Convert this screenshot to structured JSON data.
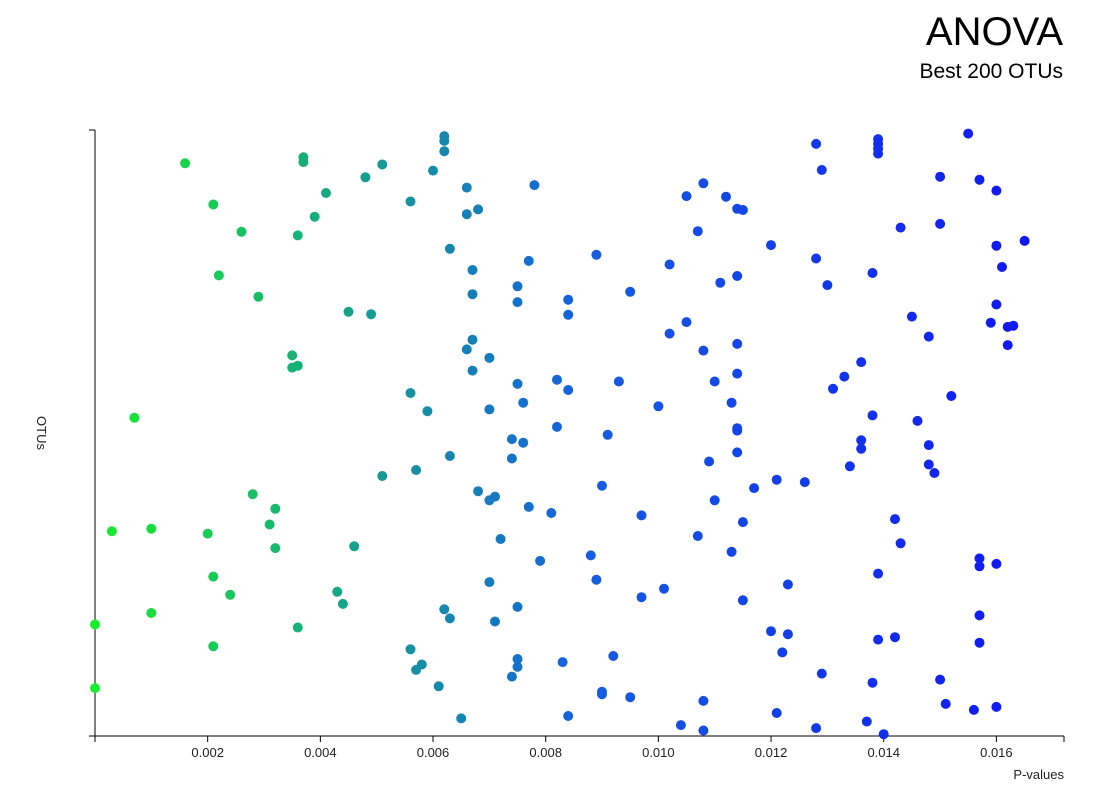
{
  "chart_data": {
    "type": "scatter",
    "title": "ANOVA",
    "subtitle": "Best 200 OTUs",
    "xlabel": "P-values",
    "ylabel": "OTUs",
    "xlim": [
      0,
      0.0172
    ],
    "ylim": [
      0,
      1
    ],
    "x_ticks": [
      "0.002",
      "0.004",
      "0.006",
      "0.008",
      "0.010",
      "0.012",
      "0.014",
      "0.016"
    ],
    "x_tick_values": [
      0.002,
      0.004,
      0.006,
      0.008,
      0.01,
      0.012,
      0.014,
      0.016
    ],
    "color_scale": [
      "#18ee2a",
      "#1560e0",
      "#1010f5"
    ],
    "points": [
      [
        0.0016,
        0.945
      ],
      [
        0.0037,
        0.955
      ],
      [
        0.0037,
        0.947
      ],
      [
        0.0051,
        0.943
      ],
      [
        0.0062,
        0.99
      ],
      [
        0.0062,
        0.982
      ],
      [
        0.0062,
        0.965
      ],
      [
        0.0048,
        0.922
      ],
      [
        0.006,
        0.933
      ],
      [
        0.0021,
        0.877
      ],
      [
        0.0041,
        0.896
      ],
      [
        0.0039,
        0.857
      ],
      [
        0.0026,
        0.832
      ],
      [
        0.0036,
        0.826
      ],
      [
        0.0056,
        0.882
      ],
      [
        0.0066,
        0.905
      ],
      [
        0.0068,
        0.869
      ],
      [
        0.0066,
        0.861
      ],
      [
        0.0078,
        0.909
      ],
      [
        0.0063,
        0.804
      ],
      [
        0.0067,
        0.769
      ],
      [
        0.0022,
        0.76
      ],
      [
        0.0029,
        0.725
      ],
      [
        0.0067,
        0.729
      ],
      [
        0.0075,
        0.742
      ],
      [
        0.0077,
        0.784
      ],
      [
        0.0075,
        0.716
      ],
      [
        0.0045,
        0.7
      ],
      [
        0.0049,
        0.696
      ],
      [
        0.0089,
        0.794
      ],
      [
        0.0084,
        0.72
      ],
      [
        0.0084,
        0.695
      ],
      [
        0.0067,
        0.654
      ],
      [
        0.0066,
        0.638
      ],
      [
        0.0035,
        0.628
      ],
      [
        0.0035,
        0.608
      ],
      [
        0.0036,
        0.611
      ],
      [
        0.007,
        0.624
      ],
      [
        0.0067,
        0.603
      ],
      [
        0.0075,
        0.581
      ],
      [
        0.0082,
        0.588
      ],
      [
        0.0084,
        0.571
      ],
      [
        0.0056,
        0.566
      ],
      [
        0.0059,
        0.536
      ],
      [
        0.0076,
        0.55
      ],
      [
        0.007,
        0.539
      ],
      [
        0.0007,
        0.525
      ],
      [
        0.0082,
        0.51
      ],
      [
        0.0074,
        0.49
      ],
      [
        0.0076,
        0.484
      ],
      [
        0.0091,
        0.497
      ],
      [
        0.0093,
        0.585
      ],
      [
        0.0095,
        0.733
      ],
      [
        0.0074,
        0.458
      ],
      [
        0.0063,
        0.462
      ],
      [
        0.0057,
        0.439
      ],
      [
        0.0051,
        0.429
      ],
      [
        0.0068,
        0.404
      ],
      [
        0.007,
        0.389
      ],
      [
        0.0071,
        0.395
      ],
      [
        0.0077,
        0.378
      ],
      [
        0.0081,
        0.368
      ],
      [
        0.009,
        0.413
      ],
      [
        0.0097,
        0.364
      ],
      [
        0.0028,
        0.399
      ],
      [
        0.0032,
        0.375
      ],
      [
        0.0031,
        0.349
      ],
      [
        0.0003,
        0.338
      ],
      [
        0.001,
        0.342
      ],
      [
        0.002,
        0.334
      ],
      [
        0.0032,
        0.31
      ],
      [
        0.0046,
        0.313
      ],
      [
        0.0072,
        0.325
      ],
      [
        0.0079,
        0.289
      ],
      [
        0.0088,
        0.298
      ],
      [
        0.0089,
        0.258
      ],
      [
        0.007,
        0.254
      ],
      [
        0.0075,
        0.213
      ],
      [
        0.0021,
        0.263
      ],
      [
        0.0024,
        0.233
      ],
      [
        0.0043,
        0.238
      ],
      [
        0.0044,
        0.218
      ],
      [
        0.001,
        0.203
      ],
      [
        0.0,
        0.184
      ],
      [
        0.0036,
        0.179
      ],
      [
        0.0062,
        0.209
      ],
      [
        0.0063,
        0.194
      ],
      [
        0.0071,
        0.189
      ],
      [
        0.0097,
        0.229
      ],
      [
        0.0101,
        0.243
      ],
      [
        0.0021,
        0.148
      ],
      [
        0.0056,
        0.143
      ],
      [
        0.0058,
        0.118
      ],
      [
        0.0057,
        0.109
      ],
      [
        0.0075,
        0.127
      ],
      [
        0.0075,
        0.114
      ],
      [
        0.0074,
        0.098
      ],
      [
        0.0083,
        0.122
      ],
      [
        0.0092,
        0.132
      ],
      [
        0.0061,
        0.082
      ],
      [
        0.0,
        0.079
      ],
      [
        0.009,
        0.073
      ],
      [
        0.009,
        0.069
      ],
      [
        0.0095,
        0.064
      ],
      [
        0.0065,
        0.029
      ],
      [
        0.0084,
        0.033
      ],
      [
        0.0104,
        0.018
      ],
      [
        0.0108,
        0.058
      ],
      [
        0.0108,
        0.009
      ],
      [
        0.0105,
        0.891
      ],
      [
        0.0108,
        0.912
      ],
      [
        0.0112,
        0.89
      ],
      [
        0.0114,
        0.87
      ],
      [
        0.0115,
        0.868
      ],
      [
        0.0107,
        0.833
      ],
      [
        0.0102,
        0.778
      ],
      [
        0.0111,
        0.748
      ],
      [
        0.0114,
        0.759
      ],
      [
        0.012,
        0.81
      ],
      [
        0.0102,
        0.664
      ],
      [
        0.0105,
        0.683
      ],
      [
        0.0108,
        0.636
      ],
      [
        0.0114,
        0.647
      ],
      [
        0.0114,
        0.598
      ],
      [
        0.011,
        0.585
      ],
      [
        0.0113,
        0.55
      ],
      [
        0.0114,
        0.508
      ],
      [
        0.0114,
        0.504
      ],
      [
        0.0114,
        0.468
      ],
      [
        0.01,
        0.544
      ],
      [
        0.0109,
        0.453
      ],
      [
        0.0117,
        0.409
      ],
      [
        0.0121,
        0.423
      ],
      [
        0.0126,
        0.419
      ],
      [
        0.011,
        0.389
      ],
      [
        0.0115,
        0.353
      ],
      [
        0.0107,
        0.33
      ],
      [
        0.0113,
        0.304
      ],
      [
        0.0123,
        0.25
      ],
      [
        0.0115,
        0.224
      ],
      [
        0.012,
        0.173
      ],
      [
        0.0123,
        0.168
      ],
      [
        0.0122,
        0.138
      ],
      [
        0.0129,
        0.103
      ],
      [
        0.0121,
        0.038
      ],
      [
        0.0128,
        0.013
      ],
      [
        0.0128,
        0.977
      ],
      [
        0.0129,
        0.934
      ],
      [
        0.0139,
        0.985
      ],
      [
        0.0139,
        0.977
      ],
      [
        0.0139,
        0.969
      ],
      [
        0.0139,
        0.961
      ],
      [
        0.0155,
        0.994
      ],
      [
        0.015,
        0.923
      ],
      [
        0.0157,
        0.918
      ],
      [
        0.016,
        0.9
      ],
      [
        0.0143,
        0.839
      ],
      [
        0.015,
        0.845
      ],
      [
        0.016,
        0.809
      ],
      [
        0.0165,
        0.817
      ],
      [
        0.0161,
        0.774
      ],
      [
        0.0128,
        0.788
      ],
      [
        0.0138,
        0.764
      ],
      [
        0.013,
        0.744
      ],
      [
        0.016,
        0.712
      ],
      [
        0.0145,
        0.692
      ],
      [
        0.0148,
        0.659
      ],
      [
        0.0159,
        0.682
      ],
      [
        0.0162,
        0.675
      ],
      [
        0.0163,
        0.677
      ],
      [
        0.0162,
        0.645
      ],
      [
        0.0136,
        0.617
      ],
      [
        0.0133,
        0.593
      ],
      [
        0.0131,
        0.573
      ],
      [
        0.0152,
        0.561
      ],
      [
        0.0138,
        0.529
      ],
      [
        0.0146,
        0.52
      ],
      [
        0.0136,
        0.488
      ],
      [
        0.0136,
        0.474
      ],
      [
        0.0148,
        0.48
      ],
      [
        0.0134,
        0.445
      ],
      [
        0.0148,
        0.448
      ],
      [
        0.0149,
        0.434
      ],
      [
        0.0142,
        0.358
      ],
      [
        0.0143,
        0.318
      ],
      [
        0.0157,
        0.293
      ],
      [
        0.0157,
        0.28
      ],
      [
        0.016,
        0.284
      ],
      [
        0.0139,
        0.268
      ],
      [
        0.0157,
        0.199
      ],
      [
        0.0157,
        0.154
      ],
      [
        0.0139,
        0.159
      ],
      [
        0.0142,
        0.163
      ],
      [
        0.0138,
        0.088
      ],
      [
        0.015,
        0.093
      ],
      [
        0.0151,
        0.053
      ],
      [
        0.0156,
        0.043
      ],
      [
        0.016,
        0.048
      ],
      [
        0.0137,
        0.024
      ],
      [
        0.014,
        0.003
      ]
    ]
  }
}
